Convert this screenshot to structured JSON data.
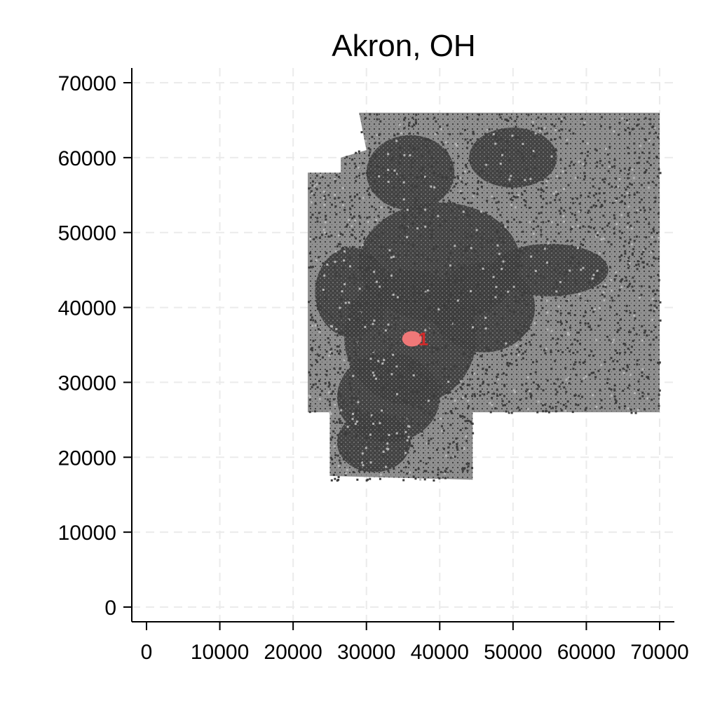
{
  "chart_data": {
    "type": "scatter",
    "title": "Akron, OH",
    "xlabel": "",
    "ylabel": "",
    "xlim": [
      0,
      70000
    ],
    "ylim": [
      0,
      70000
    ],
    "xticks": [
      0,
      10000,
      20000,
      30000,
      40000,
      50000,
      60000,
      70000
    ],
    "yticks": [
      0,
      10000,
      20000,
      30000,
      40000,
      50000,
      60000,
      70000
    ],
    "grid": true,
    "colors": {
      "background_dark": "#3d3d3d",
      "background_light": "#8f8f8f",
      "highlight": "#f07878",
      "marker_label": "#d42a2a",
      "grid": "#ebebeb"
    },
    "region_extent": {
      "x": [
        22000,
        70000
      ],
      "y": [
        17000,
        66000
      ]
    },
    "highlight": {
      "label": "1",
      "x": 36500,
      "y": 36000
    }
  }
}
